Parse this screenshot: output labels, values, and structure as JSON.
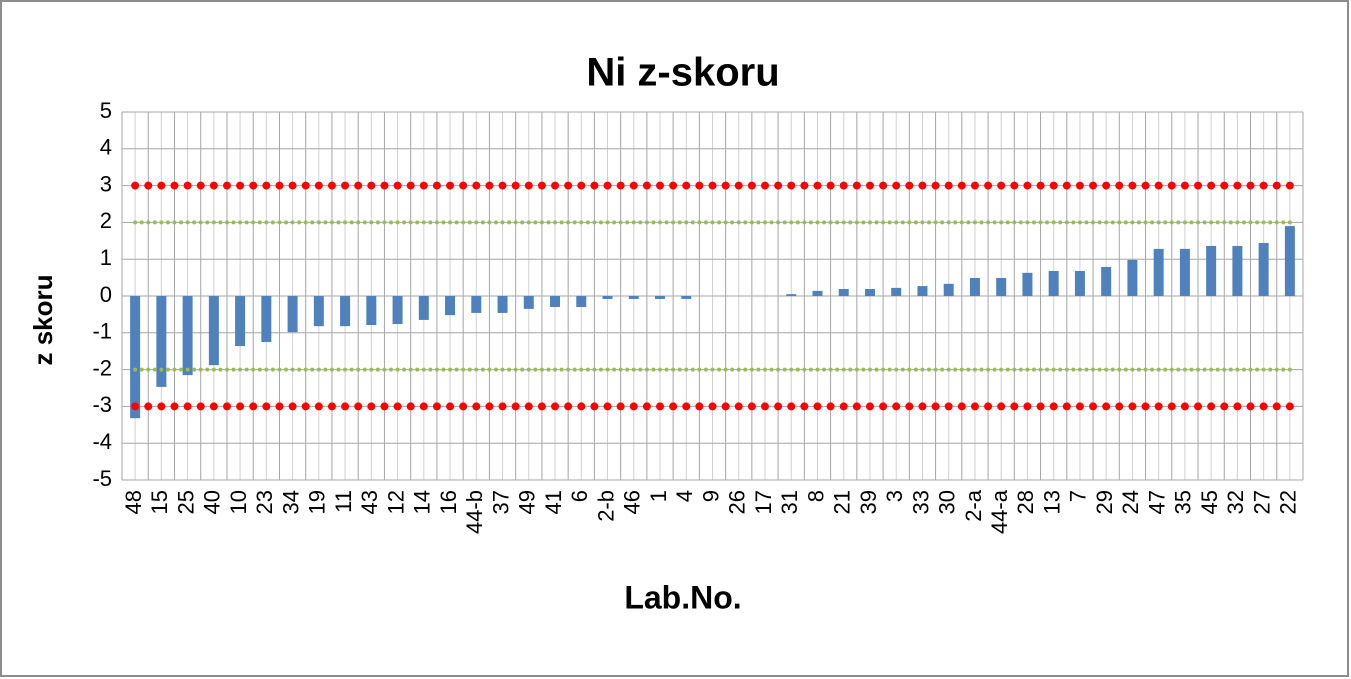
{
  "chart_data": {
    "type": "bar",
    "title": "Ni z-skoru",
    "x_label": "Lab.No.",
    "y_label": "z skoru",
    "categories": [
      "48",
      "15",
      "25",
      "40",
      "10",
      "23",
      "34",
      "19",
      "11",
      "43",
      "12",
      "14",
      "16",
      "44-b",
      "37",
      "49",
      "41",
      "6",
      "2-b",
      "46",
      "1",
      "4",
      "9",
      "26",
      "17",
      "31",
      "8",
      "21",
      "39",
      "3",
      "33",
      "30",
      "2-a",
      "44-a",
      "28",
      "13",
      "7",
      "29",
      "24",
      "47",
      "35",
      "45",
      "32",
      "27",
      "22"
    ],
    "values": [
      -3.32,
      -2.47,
      -2.15,
      -1.88,
      -1.36,
      -1.25,
      -0.98,
      -0.82,
      -0.82,
      -0.79,
      -0.76,
      -0.65,
      -0.52,
      -0.46,
      -0.46,
      -0.35,
      -0.3,
      -0.3,
      -0.08,
      -0.08,
      -0.08,
      -0.08,
      0,
      0,
      0,
      0.05,
      0.14,
      0.19,
      0.19,
      0.22,
      0.27,
      0.33,
      0.49,
      0.49,
      0.63,
      0.68,
      0.68,
      0.79,
      0.98,
      1.28,
      1.28,
      1.36,
      1.36,
      1.44,
      1.9
    ],
    "color": "#4f81bd",
    "reference_lines": [
      {
        "value": 3,
        "color": "#ff0000"
      },
      {
        "value": -3,
        "color": "#ff0000"
      },
      {
        "value": 2,
        "color": "#9bbb59"
      },
      {
        "value": -2,
        "color": "#9bbb59"
      }
    ],
    "ylim": [
      -5,
      5
    ],
    "yticks": [
      -5,
      -4,
      -3,
      -2,
      -1,
      0,
      1,
      2,
      3,
      4,
      5
    ],
    "grid": true
  }
}
